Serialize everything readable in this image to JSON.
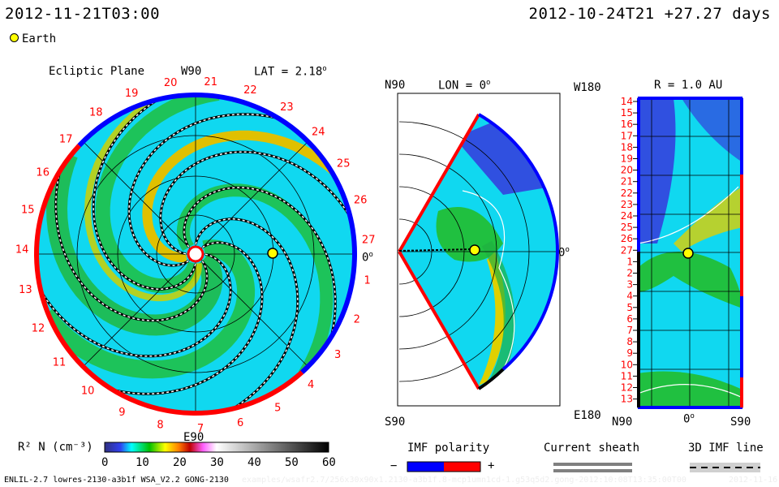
{
  "header": {
    "current_time": "2012-11-21T03:00",
    "ref_time": "2012-10-24T21 +27.27 days"
  },
  "legend_earth": "Earth",
  "ecliptic": {
    "title": "Ecliptic Plane",
    "top_label": "W90",
    "bottom_label": "E90",
    "right_label": "0",
    "lat": "LAT = 2.18",
    "carrington_labels": [
      "1",
      "2",
      "3",
      "4",
      "5",
      "6",
      "7",
      "8",
      "9",
      "10",
      "11",
      "12",
      "13",
      "14",
      "15",
      "16",
      "17",
      "18",
      "19",
      "20",
      "21",
      "22",
      "23",
      "24",
      "25",
      "26",
      "27"
    ]
  },
  "meridional": {
    "top_label": "N90",
    "bottom_label": "S90",
    "lon": "LON = 0",
    "right_label": "0"
  },
  "radial": {
    "title": "R = 1.0 AU",
    "top_left": "W180",
    "bottom_left": "E180",
    "x_labels": [
      "N90",
      "0",
      "S90"
    ],
    "row_labels": [
      "14",
      "15",
      "16",
      "17",
      "18",
      "19",
      "20",
      "21",
      "22",
      "23",
      "24",
      "25",
      "26",
      "27",
      "1",
      "2",
      "3",
      "4",
      "5",
      "6",
      "7",
      "8",
      "9",
      "10",
      "11",
      "12",
      "13"
    ]
  },
  "colorbar": {
    "label": "R² N (cm⁻³)",
    "ticks": [
      "0",
      "10",
      "20",
      "30",
      "40",
      "50",
      "60"
    ]
  },
  "imf": {
    "title": "IMF polarity",
    "minus": "−",
    "plus": "+",
    "neg_color": "#0000ff",
    "pos_color": "#ff0000"
  },
  "sheath": {
    "title": "Current sheath"
  },
  "imf_line": {
    "title": "3D IMF line"
  },
  "footer": {
    "run": "ENLIL-2.7 lowres-2130-a3b1f WSA_V2.2 GONG-2130",
    "path": "examples/wsafr2.7/256x30x90x1.2130-a3b1f.8-mcp1umn1cd-1.g53q5d2.gong-2012:10:08T13:35:00T00",
    "date": "2012-11-16"
  }
}
